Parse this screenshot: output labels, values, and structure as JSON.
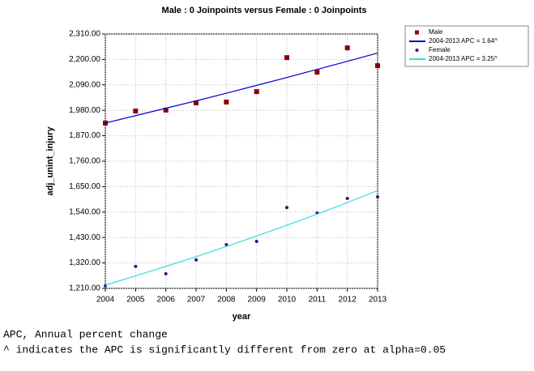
{
  "chart_data": {
    "type": "line",
    "title": "Male : 0 Joinpoints  versus  Female : 0 Joinpoints",
    "x_label": "year",
    "y_label": "adj_unint_injury",
    "x": [
      2004,
      2005,
      2006,
      2007,
      2008,
      2009,
      2010,
      2011,
      2012,
      2013
    ],
    "xlim": [
      2004,
      2013
    ],
    "xticks": [
      2004,
      2005,
      2006,
      2007,
      2008,
      2009,
      2010,
      2011,
      2012,
      2013
    ],
    "ylim": [
      1210,
      2310
    ],
    "yticks": [
      {
        "value": 1210,
        "label": "1,210.00"
      },
      {
        "value": 1320,
        "label": "1,320.00"
      },
      {
        "value": 1430,
        "label": "1,430.00"
      },
      {
        "value": 1540,
        "label": "1,540.00"
      },
      {
        "value": 1650,
        "label": "1,650.00"
      },
      {
        "value": 1760,
        "label": "1,760.00"
      },
      {
        "value": 1870,
        "label": "1,870.00"
      },
      {
        "value": 1980,
        "label": "1,980.00"
      },
      {
        "value": 2090,
        "label": "2,090.00"
      },
      {
        "value": 2200,
        "label": "2,200.00"
      },
      {
        "value": 2310,
        "label": "2,310.00"
      }
    ],
    "grid": true,
    "legend": "right",
    "series": [
      {
        "name": "Male",
        "color": "#8b0000",
        "style": "square",
        "values": [
          1925,
          1977,
          1981,
          2012,
          2016,
          2061,
          2208,
          2145,
          2250,
          2173
        ]
      },
      {
        "name": "2004-2013 APC = 1.64^",
        "color": "#0000cc",
        "style": "line",
        "values": [
          1925,
          1957,
          1989,
          2021,
          2054,
          2088,
          2122,
          2157,
          2192,
          2228
        ]
      },
      {
        "name": "Female",
        "color": "#4b0082",
        "style": "dot",
        "values": [
          1221,
          1305,
          1273,
          1333,
          1399,
          1413,
          1560,
          1536,
          1599,
          1606
        ]
      },
      {
        "name": "2004-2013 APC = 3.25^",
        "color": "#33dddd",
        "style": "line",
        "values": [
          1224,
          1264,
          1305,
          1347,
          1391,
          1436,
          1483,
          1531,
          1581,
          1633
        ]
      }
    ]
  },
  "footnotes": [
    "APC, Annual percent change",
    "^ indicates the APC is significantly different from zero at alpha=0.05"
  ]
}
